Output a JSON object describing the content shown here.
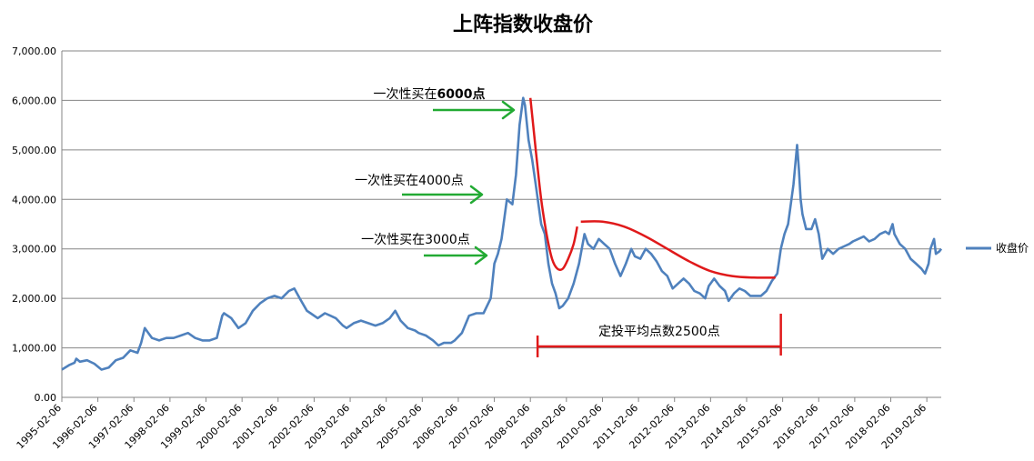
{
  "chart_data": {
    "type": "line",
    "title": "上阵指数收盘价",
    "xlabel": "",
    "ylabel": "",
    "ylim": [
      0,
      7000
    ],
    "y_ticks": [
      0,
      1000,
      2000,
      3000,
      4000,
      5000,
      6000,
      7000
    ],
    "y_tick_labels": [
      "0.00",
      "1,000.00",
      "2,000.00",
      "3,000.00",
      "4,000.00",
      "5,000.00",
      "6,000.00",
      "7,000.00"
    ],
    "x_tick_labels": [
      "1995-02-06",
      "1996-02-06",
      "1997-02-06",
      "1998-02-06",
      "1999-02-06",
      "2000-02-06",
      "2001-02-06",
      "2002-02-06",
      "2003-02-06",
      "2004-02-06",
      "2005-02-06",
      "2006-02-06",
      "2007-02-06",
      "2008-02-06",
      "2009-02-06",
      "2010-02-06",
      "2011-02-06",
      "2012-02-06",
      "2013-02-06",
      "2014-02-06",
      "2015-02-06",
      "2016-02-06",
      "2017-02-06",
      "2018-02-06",
      "2019-02-06"
    ],
    "xlim": [
      1995.0,
      2019.4
    ],
    "grid": "horizontal",
    "legend_position": "right",
    "series": [
      {
        "name": "收盘价",
        "color": "#4f81bd",
        "points": [
          [
            1995.0,
            560
          ],
          [
            1995.2,
            650
          ],
          [
            1995.35,
            700
          ],
          [
            1995.4,
            780
          ],
          [
            1995.5,
            720
          ],
          [
            1995.7,
            750
          ],
          [
            1995.9,
            680
          ],
          [
            1996.1,
            560
          ],
          [
            1996.3,
            600
          ],
          [
            1996.5,
            750
          ],
          [
            1996.7,
            800
          ],
          [
            1996.9,
            950
          ],
          [
            1997.1,
            900
          ],
          [
            1997.2,
            1100
          ],
          [
            1997.3,
            1400
          ],
          [
            1997.4,
            1300
          ],
          [
            1997.5,
            1200
          ],
          [
            1997.7,
            1150
          ],
          [
            1997.9,
            1200
          ],
          [
            1998.1,
            1200
          ],
          [
            1998.3,
            1250
          ],
          [
            1998.5,
            1300
          ],
          [
            1998.7,
            1200
          ],
          [
            1998.9,
            1150
          ],
          [
            1999.1,
            1150
          ],
          [
            1999.3,
            1200
          ],
          [
            1999.45,
            1650
          ],
          [
            1999.5,
            1700
          ],
          [
            1999.7,
            1600
          ],
          [
            1999.9,
            1400
          ],
          [
            2000.1,
            1500
          ],
          [
            2000.3,
            1750
          ],
          [
            2000.5,
            1900
          ],
          [
            2000.7,
            2000
          ],
          [
            2000.9,
            2050
          ],
          [
            2001.1,
            2000
          ],
          [
            2001.3,
            2150
          ],
          [
            2001.45,
            2200
          ],
          [
            2001.6,
            2000
          ],
          [
            2001.8,
            1750
          ],
          [
            2001.9,
            1700
          ],
          [
            2002.1,
            1600
          ],
          [
            2002.3,
            1700
          ],
          [
            2002.45,
            1650
          ],
          [
            2002.6,
            1600
          ],
          [
            2002.8,
            1450
          ],
          [
            2002.9,
            1400
          ],
          [
            2003.1,
            1500
          ],
          [
            2003.3,
            1550
          ],
          [
            2003.5,
            1500
          ],
          [
            2003.7,
            1450
          ],
          [
            2003.9,
            1500
          ],
          [
            2004.1,
            1600
          ],
          [
            2004.25,
            1750
          ],
          [
            2004.4,
            1550
          ],
          [
            2004.6,
            1400
          ],
          [
            2004.8,
            1350
          ],
          [
            2004.9,
            1300
          ],
          [
            2005.1,
            1250
          ],
          [
            2005.3,
            1150
          ],
          [
            2005.45,
            1050
          ],
          [
            2005.6,
            1100
          ],
          [
            2005.8,
            1100
          ],
          [
            2005.9,
            1150
          ],
          [
            2006.1,
            1300
          ],
          [
            2006.3,
            1650
          ],
          [
            2006.5,
            1700
          ],
          [
            2006.7,
            1700
          ],
          [
            2006.9,
            2000
          ],
          [
            2007.0,
            2700
          ],
          [
            2007.1,
            2900
          ],
          [
            2007.2,
            3200
          ],
          [
            2007.35,
            4000
          ],
          [
            2007.5,
            3900
          ],
          [
            2007.6,
            4500
          ],
          [
            2007.7,
            5500
          ],
          [
            2007.8,
            6050
          ],
          [
            2007.85,
            5900
          ],
          [
            2007.95,
            5200
          ],
          [
            2008.05,
            4800
          ],
          [
            2008.15,
            4300
          ],
          [
            2008.3,
            3500
          ],
          [
            2008.4,
            3300
          ],
          [
            2008.5,
            2700
          ],
          [
            2008.6,
            2300
          ],
          [
            2008.7,
            2100
          ],
          [
            2008.8,
            1800
          ],
          [
            2008.9,
            1850
          ],
          [
            2009.05,
            2000
          ],
          [
            2009.2,
            2300
          ],
          [
            2009.35,
            2700
          ],
          [
            2009.5,
            3300
          ],
          [
            2009.6,
            3100
          ],
          [
            2009.75,
            3000
          ],
          [
            2009.9,
            3200
          ],
          [
            2010.05,
            3100
          ],
          [
            2010.2,
            3000
          ],
          [
            2010.35,
            2700
          ],
          [
            2010.5,
            2450
          ],
          [
            2010.65,
            2700
          ],
          [
            2010.8,
            3000
          ],
          [
            2010.9,
            2850
          ],
          [
            2011.05,
            2800
          ],
          [
            2011.2,
            3000
          ],
          [
            2011.35,
            2900
          ],
          [
            2011.5,
            2750
          ],
          [
            2011.65,
            2550
          ],
          [
            2011.8,
            2450
          ],
          [
            2011.95,
            2200
          ],
          [
            2012.1,
            2300
          ],
          [
            2012.25,
            2400
          ],
          [
            2012.4,
            2300
          ],
          [
            2012.55,
            2150
          ],
          [
            2012.7,
            2100
          ],
          [
            2012.85,
            2000
          ],
          [
            2012.95,
            2250
          ],
          [
            2013.1,
            2400
          ],
          [
            2013.25,
            2250
          ],
          [
            2013.4,
            2150
          ],
          [
            2013.5,
            1950
          ],
          [
            2013.65,
            2100
          ],
          [
            2013.8,
            2200
          ],
          [
            2013.95,
            2150
          ],
          [
            2014.1,
            2050
          ],
          [
            2014.25,
            2050
          ],
          [
            2014.4,
            2050
          ],
          [
            2014.55,
            2150
          ],
          [
            2014.7,
            2350
          ],
          [
            2014.85,
            2500
          ],
          [
            2014.95,
            3000
          ],
          [
            2015.05,
            3300
          ],
          [
            2015.15,
            3500
          ],
          [
            2015.3,
            4300
          ],
          [
            2015.4,
            5100
          ],
          [
            2015.45,
            4600
          ],
          [
            2015.5,
            4000
          ],
          [
            2015.55,
            3700
          ],
          [
            2015.65,
            3400
          ],
          [
            2015.8,
            3400
          ],
          [
            2015.9,
            3600
          ],
          [
            2016.0,
            3300
          ],
          [
            2016.1,
            2800
          ],
          [
            2016.25,
            3000
          ],
          [
            2016.4,
            2900
          ],
          [
            2016.55,
            3000
          ],
          [
            2016.7,
            3050
          ],
          [
            2016.85,
            3100
          ],
          [
            2016.95,
            3150
          ],
          [
            2017.1,
            3200
          ],
          [
            2017.25,
            3250
          ],
          [
            2017.4,
            3150
          ],
          [
            2017.55,
            3200
          ],
          [
            2017.7,
            3300
          ],
          [
            2017.85,
            3350
          ],
          [
            2017.95,
            3300
          ],
          [
            2018.05,
            3500
          ],
          [
            2018.1,
            3300
          ],
          [
            2018.25,
            3100
          ],
          [
            2018.4,
            3000
          ],
          [
            2018.55,
            2800
          ],
          [
            2018.7,
            2700
          ],
          [
            2018.85,
            2600
          ],
          [
            2018.95,
            2500
          ],
          [
            2019.05,
            2700
          ],
          [
            2019.1,
            3000
          ],
          [
            2019.2,
            3200
          ],
          [
            2019.25,
            2900
          ],
          [
            2019.35,
            2950
          ],
          [
            2019.4,
            3000
          ]
        ]
      }
    ],
    "annotations": [
      {
        "text_prefix": "一次性买在",
        "text_bold": "6000点",
        "x": 2007.8,
        "y": 6000,
        "arrow_color": "#22aa33"
      },
      {
        "text_prefix": "一次性买在4000点",
        "text_bold": "",
        "x": 2007.35,
        "y": 4000,
        "arrow_color": "#22aa33"
      },
      {
        "text_prefix": "一次性买在3000点",
        "text_bold": "",
        "x": 2007.0,
        "y": 2900,
        "arrow_color": "#22aa33"
      },
      {
        "text_prefix": "定投平均点数2500点",
        "text_bold": "",
        "x_from": 2008.2,
        "x_to": 2014.95,
        "y": 1000,
        "bracket_color": "#e0191a"
      }
    ],
    "overlay_curves": [
      {
        "color": "#e0191a",
        "points": [
          [
            2008.0,
            6050
          ],
          [
            2008.15,
            5000
          ],
          [
            2008.3,
            4000
          ],
          [
            2008.45,
            3300
          ],
          [
            2008.6,
            2800
          ],
          [
            2008.75,
            2600
          ],
          [
            2008.9,
            2600
          ],
          [
            2009.05,
            2800
          ],
          [
            2009.2,
            3100
          ],
          [
            2009.3,
            3450
          ]
        ]
      },
      {
        "color": "#e0191a",
        "points": [
          [
            2009.4,
            3550
          ],
          [
            2010.0,
            3550
          ],
          [
            2010.6,
            3450
          ],
          [
            2011.2,
            3250
          ],
          [
            2011.8,
            3000
          ],
          [
            2012.4,
            2750
          ],
          [
            2013.0,
            2550
          ],
          [
            2013.6,
            2450
          ],
          [
            2014.2,
            2420
          ],
          [
            2014.8,
            2420
          ]
        ]
      }
    ]
  }
}
